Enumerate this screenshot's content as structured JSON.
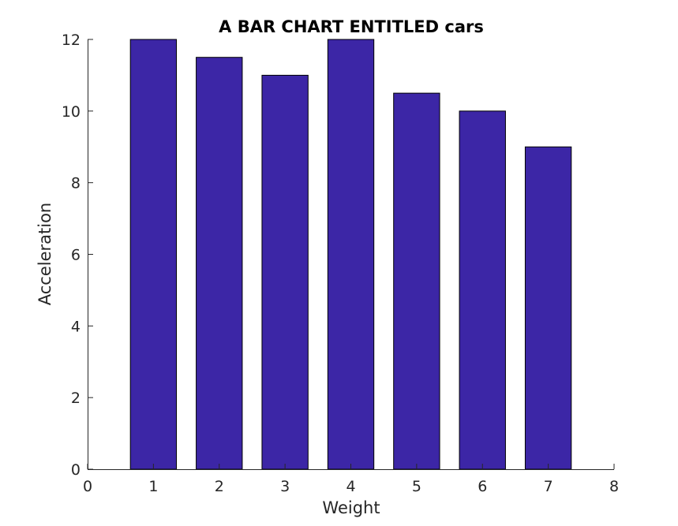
{
  "chart_data": {
    "type": "bar",
    "title": "A BAR CHART ENTITLED cars",
    "xlabel": "Weight",
    "ylabel": "Acceleration",
    "x": [
      1,
      2,
      3,
      4,
      5,
      6,
      7
    ],
    "values": [
      12,
      11.5,
      11,
      12,
      10.5,
      10,
      9
    ],
    "xlim": [
      0,
      8
    ],
    "ylim": [
      0,
      12
    ],
    "xticks": [
      "0",
      "1",
      "2",
      "3",
      "4",
      "5",
      "6",
      "7",
      "8"
    ],
    "yticks": [
      "0",
      "2",
      "4",
      "6",
      "8",
      "10",
      "12"
    ],
    "bar_width": 0.7,
    "grid": false,
    "box": false,
    "colors": {
      "bar_fill": "#3c26a6",
      "bar_edge": "#000000",
      "axis": "#262626"
    }
  }
}
